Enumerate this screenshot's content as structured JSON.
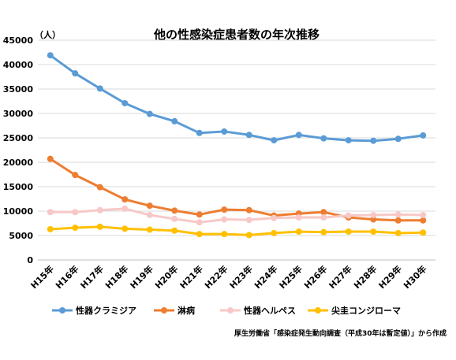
{
  "chart_data": {
    "type": "line",
    "title": "他の性感染症患者数の年次推移",
    "unit_label": "（人）",
    "categories": [
      "H15年",
      "H16年",
      "H17年",
      "H18年",
      "H19年",
      "H20年",
      "H21年",
      "H22年",
      "H23年",
      "H24年",
      "H25年",
      "H26年",
      "H27年",
      "H28年",
      "H29年",
      "H30年"
    ],
    "ylim": [
      0,
      45000
    ],
    "yticks": [
      0,
      5000,
      10000,
      15000,
      20000,
      25000,
      30000,
      35000,
      40000,
      45000
    ],
    "grid": true,
    "legend_position": "bottom",
    "series": [
      {
        "name": "性器クラミジア",
        "color": "#5B9BD5",
        "values": [
          41900,
          38200,
          35100,
          32100,
          29900,
          28400,
          26000,
          26300,
          25600,
          24500,
          25600,
          24900,
          24500,
          24400,
          24800,
          25500
        ]
      },
      {
        "name": "淋病",
        "color": "#ED7D31",
        "values": [
          20700,
          17400,
          14900,
          12400,
          11100,
          10100,
          9300,
          10300,
          10200,
          9100,
          9500,
          9800,
          8700,
          8300,
          8100,
          8100
        ]
      },
      {
        "name": "性器ヘルペス",
        "color": "#F8C8C8",
        "values": [
          9800,
          9800,
          10200,
          10500,
          9200,
          8400,
          7700,
          8300,
          8200,
          8600,
          8700,
          8700,
          9100,
          9200,
          9300,
          9200
        ]
      },
      {
        "name": "尖圭コンジローマ",
        "color": "#FFC000",
        "values": [
          6300,
          6600,
          6800,
          6400,
          6200,
          6000,
          5300,
          5300,
          5100,
          5500,
          5800,
          5700,
          5800,
          5800,
          5500,
          5600
        ]
      }
    ],
    "source_note": "厚生労働省「感染症発生動向調査（平成30年は暫定値）」から作成"
  }
}
